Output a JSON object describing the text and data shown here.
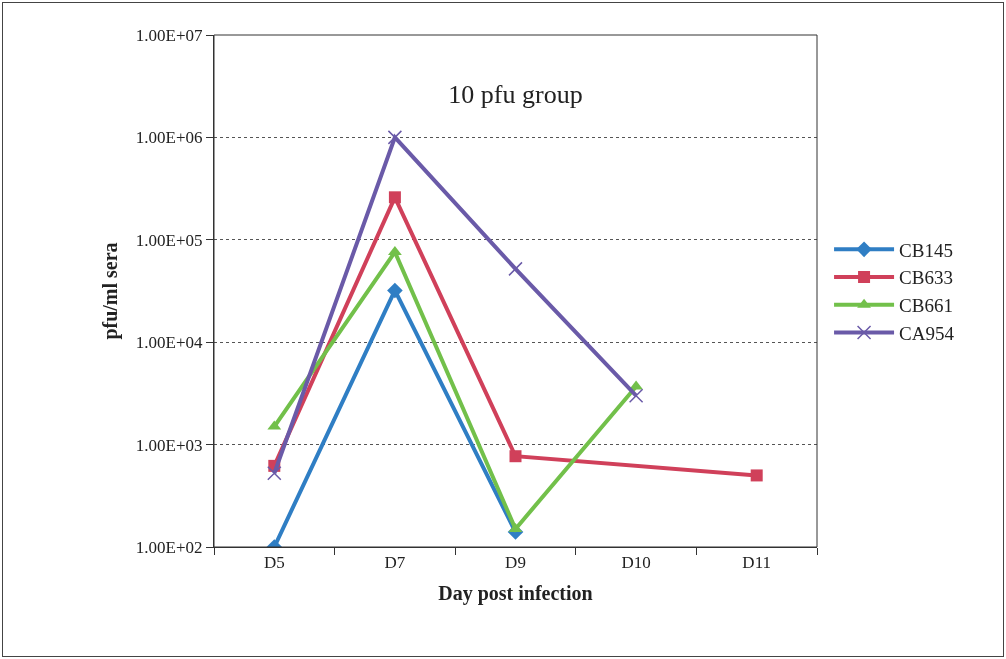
{
  "chart_data": {
    "type": "line",
    "title": "10 pfu group",
    "xlabel": "Day post infection",
    "ylabel": "pfu/ml sera",
    "categories": [
      "D5",
      "D7",
      "D9",
      "D10",
      "D11"
    ],
    "series": [
      {
        "name": "CB145",
        "color": "#2f7ec4",
        "marker": "diamond",
        "values": [
          100,
          32000,
          140,
          null,
          null
        ]
      },
      {
        "name": "CB633",
        "color": "#d0405a",
        "marker": "square",
        "values": [
          620,
          260000,
          770,
          null,
          500
        ]
      },
      {
        "name": "CB661",
        "color": "#72c04a",
        "marker": "triangle",
        "values": [
          1500,
          76000,
          150,
          3700,
          null
        ]
      },
      {
        "name": "CA954",
        "color": "#6a5aa8",
        "marker": "cross",
        "values": [
          525,
          1000000,
          52000,
          3000,
          null
        ]
      }
    ],
    "log": "y",
    "ylim": [
      100,
      10000000
    ],
    "yticks": [
      {
        "value": 100,
        "label": "1.00E+02"
      },
      {
        "value": 1000,
        "label": "1.00E+03"
      },
      {
        "value": 10000,
        "label": "1.00E+04"
      },
      {
        "value": 100000,
        "label": "1.00E+05"
      },
      {
        "value": 1000000,
        "label": "1.00E+06"
      },
      {
        "value": 10000000,
        "label": "1.00E+07"
      }
    ],
    "grid": "y",
    "legend": "right",
    "line_style": "solid"
  }
}
